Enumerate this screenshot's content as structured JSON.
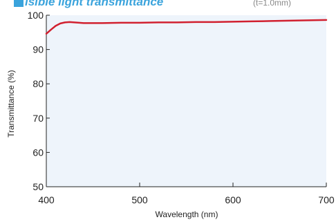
{
  "colors": {
    "title": "#3aa3dc",
    "title_marker": "#3aa3dc",
    "subtitle": "#888888",
    "plot_background": "#eef4fb",
    "axis": "#222222",
    "series_line": "#d1202f"
  },
  "chart_data": {
    "type": "line",
    "title": "isible light transmittance",
    "subtitle": "(t=1.0mm)",
    "xlabel": "Wavelength (nm)",
    "ylabel": "Transmittance (%)",
    "xlim": [
      400,
      700
    ],
    "ylim": [
      50,
      100
    ],
    "xticks": [
      400,
      500,
      600,
      700
    ],
    "yticks": [
      50,
      60,
      70,
      80,
      90,
      100
    ],
    "grid": false,
    "legend": "none",
    "series": [
      {
        "x": [
          400,
          405,
          410,
          415,
          420,
          425,
          430,
          435,
          440,
          450,
          460,
          480,
          500,
          520,
          540,
          560,
          580,
          600,
          620,
          640,
          660,
          680,
          700
        ],
        "y": [
          94.6,
          95.8,
          96.9,
          97.6,
          97.9,
          98.0,
          97.9,
          97.8,
          97.7,
          97.7,
          97.7,
          97.8,
          97.8,
          97.9,
          97.9,
          98.0,
          98.0,
          98.1,
          98.2,
          98.3,
          98.4,
          98.5,
          98.6
        ]
      }
    ]
  }
}
